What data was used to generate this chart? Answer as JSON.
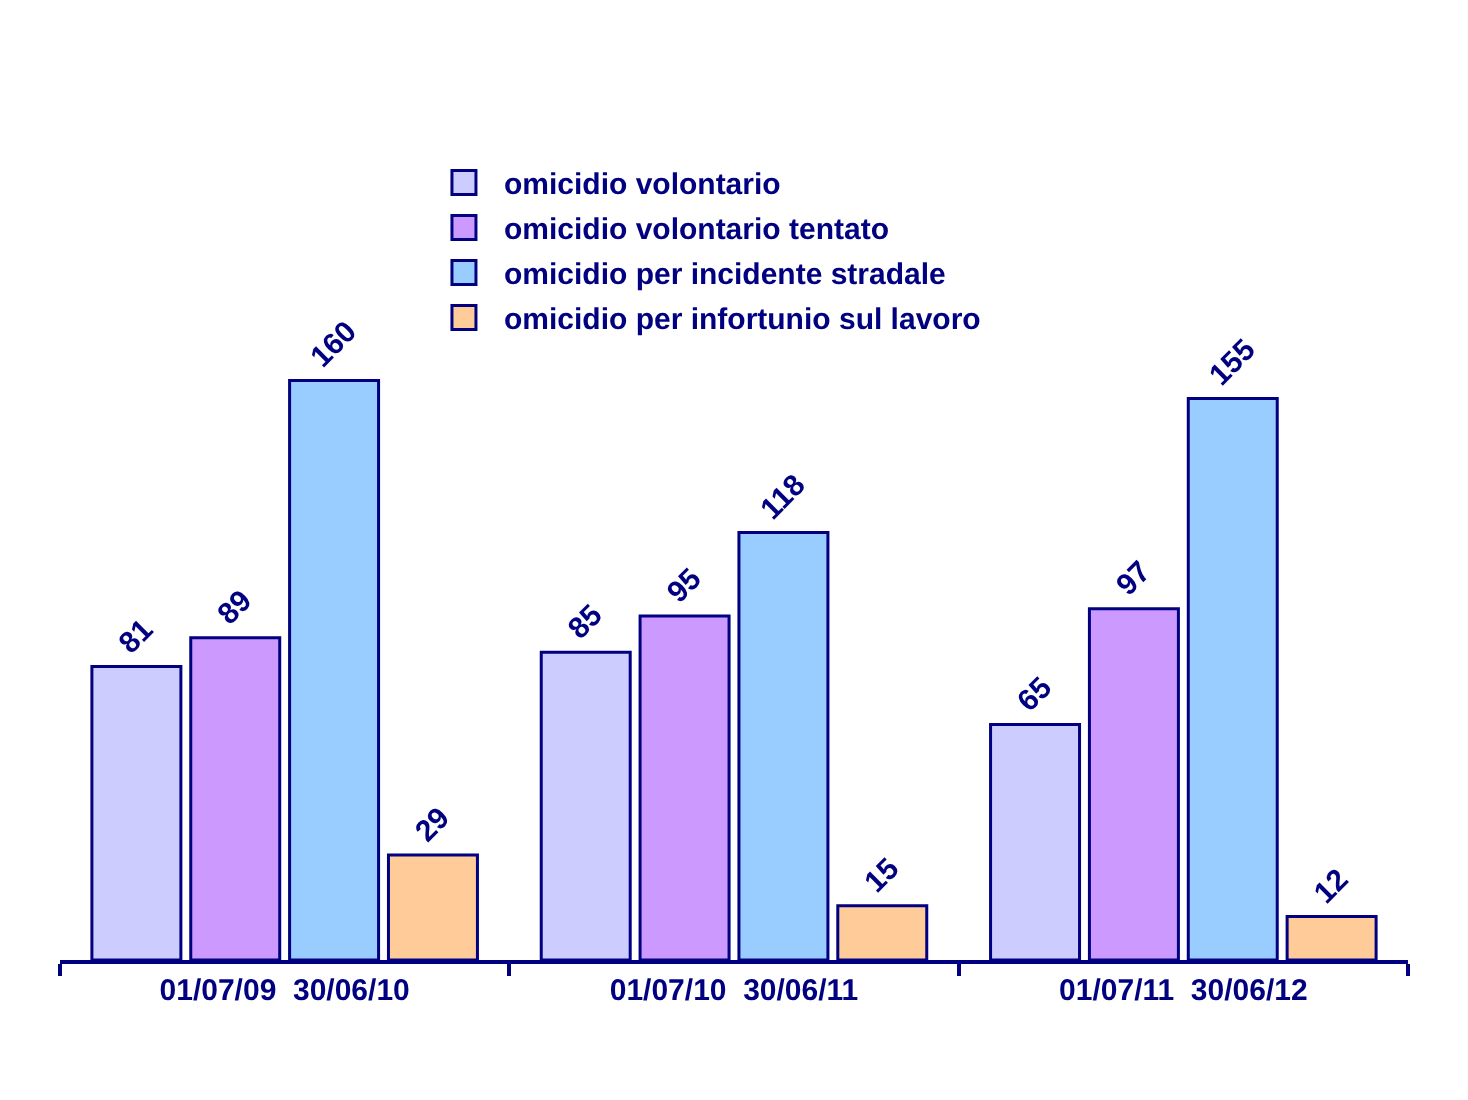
{
  "chart_data": {
    "type": "bar",
    "categories": [
      "01/07/09  30/06/10",
      "01/07/10  30/06/11",
      "01/07/11  30/06/12"
    ],
    "series": [
      {
        "name": "omicidio volontario",
        "color": "#ccccff",
        "values": [
          81,
          85,
          65
        ]
      },
      {
        "name": "omicidio volontario tentato",
        "color": "#cc99ff",
        "values": [
          89,
          95,
          97
        ]
      },
      {
        "name": "omicidio per incidente stradale",
        "color": "#99ccff",
        "values": [
          160,
          118,
          155
        ]
      },
      {
        "name": "omicidio per infortunio sul lavoro",
        "color": "#ffcc99",
        "values": [
          29,
          15,
          12
        ]
      }
    ],
    "data_labels": true,
    "legend": "top"
  }
}
